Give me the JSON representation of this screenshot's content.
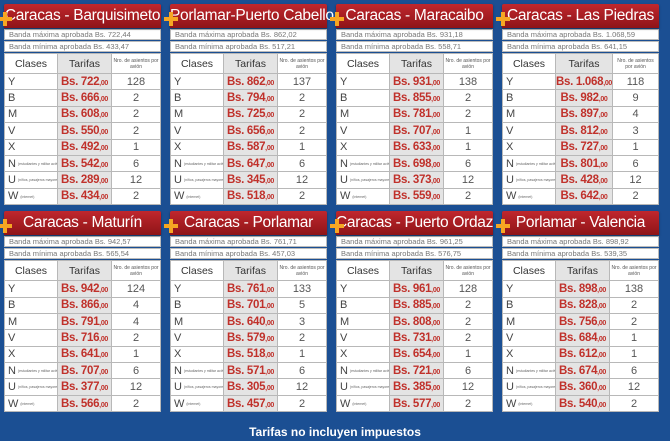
{
  "labels": {
    "banda_max": "Banda máxima aprobada Bs.",
    "banda_min": "Banda mínima aprobada Bs.",
    "col_clases": "Clases",
    "col_tarifas": "Tarifas",
    "col_seats": "Nro. de asientos por avión",
    "currency": "Bs.",
    "decimals": ",00"
  },
  "class_codes": [
    "Y",
    "B",
    "M",
    "V",
    "X",
    "N",
    "U",
    "W"
  ],
  "class_notes": [
    "",
    "",
    "",
    "",
    "",
    "(estudiantes y militar activo)",
    "(niños, pasajeros mayores de 60 años y con discapacidad)",
    "(internet)"
  ],
  "colors": {
    "background": "#1b4f93",
    "title": "#b22026",
    "price": "#c0312b",
    "accent": "#f6a623"
  },
  "routes": [
    {
      "title": "Caracas - Barquisimeto",
      "max": "722,44",
      "min": "433,47",
      "fares": [
        "722",
        "666",
        "608",
        "550",
        "492",
        "542",
        "289",
        "434"
      ],
      "seats": [
        "128",
        "2",
        "2",
        "2",
        "1",
        "6",
        "12",
        "2"
      ]
    },
    {
      "title": "Porlamar-Puerto Cabello",
      "max": "862,02",
      "min": "517,21",
      "fares": [
        "862",
        "794",
        "725",
        "656",
        "587",
        "647",
        "345",
        "518"
      ],
      "seats": [
        "137",
        "2",
        "2",
        "2",
        "1",
        "6",
        "12",
        "2"
      ]
    },
    {
      "title": "Caracas - Maracaibo",
      "max": "931,18",
      "min": "558,71",
      "fares": [
        "931",
        "855",
        "781",
        "707",
        "633",
        "698",
        "373",
        "559"
      ],
      "seats": [
        "138",
        "2",
        "2",
        "1",
        "1",
        "6",
        "12",
        "2"
      ]
    },
    {
      "title": "Caracas - Las Piedras",
      "max": "1.068,59",
      "min": "641,15",
      "fares": [
        "1.068",
        "982",
        "897",
        "812",
        "727",
        "801",
        "428",
        "642"
      ],
      "seats": [
        "118",
        "9",
        "4",
        "3",
        "1",
        "6",
        "12",
        "2"
      ]
    },
    {
      "title": "Caracas - Maturín",
      "max": "942,57",
      "min": "565,54",
      "fares": [
        "942",
        "866",
        "791",
        "716",
        "641",
        "707",
        "377",
        "566"
      ],
      "seats": [
        "124",
        "4",
        "4",
        "2",
        "1",
        "6",
        "12",
        "2"
      ]
    },
    {
      "title": "Caracas - Porlamar",
      "max": "761,71",
      "min": "457,03",
      "fares": [
        "761",
        "701",
        "640",
        "579",
        "518",
        "571",
        "305",
        "457"
      ],
      "seats": [
        "133",
        "5",
        "3",
        "2",
        "1",
        "6",
        "12",
        "2"
      ]
    },
    {
      "title": "Caracas - Puerto Ordaz",
      "max": "961,25",
      "min": "576,75",
      "fares": [
        "961",
        "885",
        "808",
        "731",
        "654",
        "721",
        "385",
        "577"
      ],
      "seats": [
        "128",
        "2",
        "2",
        "2",
        "1",
        "6",
        "12",
        "2"
      ]
    },
    {
      "title": "Porlamar - Valencia",
      "max": "898,92",
      "min": "539,35",
      "fares": [
        "898",
        "828",
        "756",
        "684",
        "612",
        "674",
        "360",
        "540"
      ],
      "seats": [
        "138",
        "2",
        "2",
        "1",
        "1",
        "6",
        "12",
        "2"
      ]
    }
  ],
  "footer": "Tarifas no incluyen impuestos"
}
